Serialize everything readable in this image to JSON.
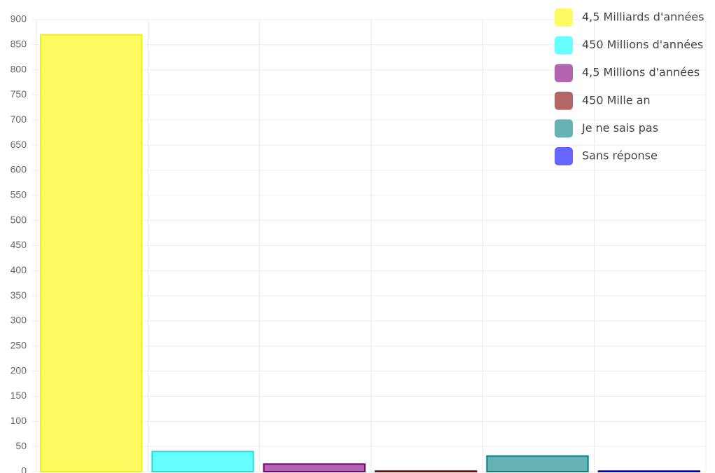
{
  "chart_data": {
    "type": "bar",
    "series": [
      {
        "name": "4,5 Milliards d'années",
        "color": "#fdfb62",
        "border_color": "#f0ef10",
        "values": [
          870
        ]
      },
      {
        "name": "450 Millions d'années",
        "color": "#66ffff",
        "border_color": "#22dddd",
        "values": [
          40
        ]
      },
      {
        "name": "4,5 Millions d'années",
        "color": "#b266b2",
        "border_color": "#800080",
        "values": [
          15
        ]
      },
      {
        "name": "450 Mille an",
        "color": "#b26666",
        "border_color": "#800000",
        "values": [
          1
        ]
      },
      {
        "name": "Je ne sais pas",
        "color": "#66b2b2",
        "border_color": "#008080",
        "values": [
          31
        ]
      },
      {
        "name": "Sans réponse",
        "color": "#6666ff",
        "border_color": "#0000cc",
        "values": [
          1
        ]
      }
    ],
    "ylim": [
      0,
      900
    ],
    "yticks": [
      0,
      50,
      100,
      150,
      200,
      250,
      300,
      350,
      400,
      450,
      500,
      550,
      600,
      650,
      700,
      750,
      800,
      850,
      900
    ],
    "grid": true,
    "legend": "top-right"
  }
}
